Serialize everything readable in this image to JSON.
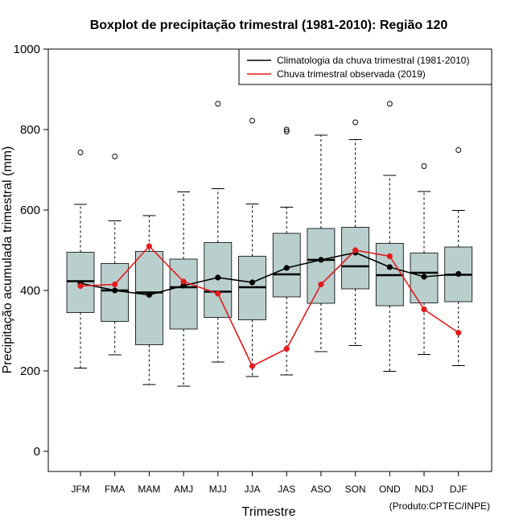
{
  "chart_data": {
    "type": "boxplot",
    "title": "Boxplot de precipitação trimestral (1981-2010): Região 120",
    "xlabel": "Trimestre",
    "ylabel": "Precipitação acumulada trimestral (mm)",
    "ylim": [
      -50,
      1000
    ],
    "yticks": [
      0,
      200,
      400,
      600,
      800,
      1000
    ],
    "credit": "(Produto:CPTEC/INPE)",
    "categories": [
      "JFM",
      "FMA",
      "MAM",
      "AMJ",
      "MJJ",
      "JJA",
      "JAS",
      "ASO",
      "SON",
      "OND",
      "NDJ",
      "DJF"
    ],
    "boxes": [
      {
        "min": 207,
        "q1": 345,
        "median": 423,
        "q3": 495,
        "max": 614,
        "outliers": [
          743
        ]
      },
      {
        "min": 240,
        "q1": 323,
        "median": 400,
        "q3": 467,
        "max": 573,
        "outliers": [
          733
        ]
      },
      {
        "min": 166,
        "q1": 265,
        "median": 395,
        "q3": 497,
        "max": 586,
        "outliers": []
      },
      {
        "min": 162,
        "q1": 304,
        "median": 408,
        "q3": 478,
        "max": 645,
        "outliers": []
      },
      {
        "min": 222,
        "q1": 333,
        "median": 397,
        "q3": 519,
        "max": 653,
        "outliers": [
          864
        ]
      },
      {
        "min": 186,
        "q1": 327,
        "median": 408,
        "q3": 485,
        "max": 615,
        "outliers": [
          822
        ]
      },
      {
        "min": 190,
        "q1": 384,
        "median": 440,
        "q3": 542,
        "max": 607,
        "outliers": [
          795,
          800
        ]
      },
      {
        "min": 248,
        "q1": 368,
        "median": 476,
        "q3": 554,
        "max": 786,
        "outliers": []
      },
      {
        "min": 263,
        "q1": 404,
        "median": 460,
        "q3": 557,
        "max": 775,
        "outliers": [
          818
        ]
      },
      {
        "min": 199,
        "q1": 362,
        "median": 438,
        "q3": 517,
        "max": 686,
        "outliers": [
          864
        ]
      },
      {
        "min": 241,
        "q1": 369,
        "median": 444,
        "q3": 493,
        "max": 646,
        "outliers": [
          709
        ]
      },
      {
        "min": 213,
        "q1": 372,
        "median": 439,
        "q3": 508,
        "max": 599,
        "outliers": [
          749
        ]
      }
    ],
    "series": [
      {
        "name": "Climatologia da chuva trimestral (1981-2010)",
        "color": "#000000",
        "values": [
          418,
          400,
          389,
          412,
          432,
          420,
          456,
          476,
          494,
          458,
          434,
          441
        ]
      },
      {
        "name": "Chuva trimestral observada (2019)",
        "color": "#e41a1c",
        "values": [
          411,
          415,
          510,
          422,
          392,
          212,
          255,
          415,
          500,
          485,
          353,
          295
        ]
      }
    ],
    "box_fill": "#b9cfcd",
    "legend_position": "top-right"
  }
}
